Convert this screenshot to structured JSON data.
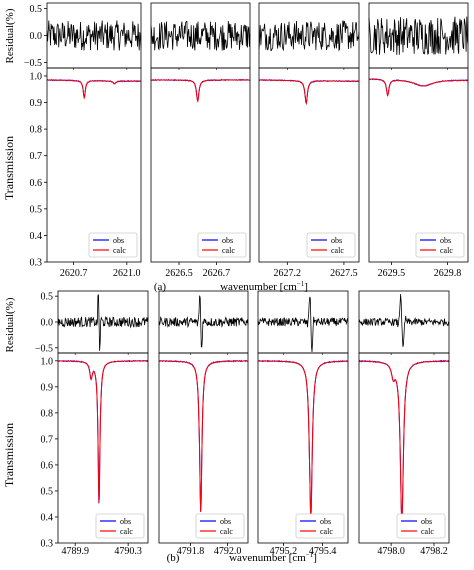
{
  "chart_data": [
    {
      "type": "line",
      "panel_label": "(a)",
      "xlabel": "wavenumber [cm",
      "xlabel_sup": "−1",
      "xlabel_close": "]",
      "residual_ylabel": "Residual(%)",
      "ylabel": "Transmission",
      "residual_ylim": [
        -0.6,
        0.6
      ],
      "residual_yticks": [
        "0.5",
        "0.0",
        "−0.5"
      ],
      "ylim": [
        0.3,
        1.03
      ],
      "yticks": [
        "1.0",
        "0.9",
        "0.8",
        "0.7",
        "0.6",
        "0.5",
        "0.4",
        "0.3"
      ],
      "legend": {
        "placement": "lower right",
        "entries": [
          "obs",
          "calc"
        ]
      },
      "series_colors": {
        "obs": "#0000ff",
        "calc": "#ff0000"
      },
      "residual_noise": [
        0.28,
        0.28,
        0.28,
        0.36
      ],
      "subplots": [
        {
          "xlim": [
            2620.55,
            2621.08
          ],
          "xticks": [
            "2620.7",
            "2621.0"
          ],
          "xtick_values": [
            2620.7,
            2621.0
          ],
          "baseline": [
            0.985,
            0.98
          ],
          "lines": [
            {
              "center": 2620.76,
              "depth": 0.065,
              "width": 0.007
            },
            {
              "center": 2620.93,
              "depth": 0.01,
              "width": 0.01
            }
          ]
        },
        {
          "xlim": [
            2626.35,
            2626.88
          ],
          "xticks": [
            "2626.5",
            "2626.7"
          ],
          "xtick_values": [
            2626.5,
            2626.7
          ],
          "baseline": [
            0.985,
            0.985
          ],
          "lines": [
            {
              "center": 2626.6,
              "depth": 0.08,
              "width": 0.008
            }
          ]
        },
        {
          "xlim": [
            2627.05,
            2627.58
          ],
          "xticks": [
            "2627.2",
            "2627.5"
          ],
          "xtick_values": [
            2627.2,
            2627.5
          ],
          "baseline": [
            0.985,
            0.98
          ],
          "lines": [
            {
              "center": 2627.3,
              "depth": 0.085,
              "width": 0.008
            }
          ]
        },
        {
          "xlim": [
            2629.38,
            2629.91
          ],
          "xticks": [
            "2629.5",
            "2629.8"
          ],
          "xtick_values": [
            2629.5,
            2629.8
          ],
          "baseline": [
            0.99,
            0.985
          ],
          "lines": [
            {
              "center": 2629.48,
              "depth": 0.06,
              "width": 0.008
            },
            {
              "center": 2629.67,
              "depth": 0.025,
              "width": 0.06
            }
          ]
        }
      ]
    },
    {
      "type": "line",
      "panel_label": "(b)",
      "xlabel": "wavenumber [cm",
      "xlabel_sup": "−1",
      "xlabel_close": "]",
      "residual_ylabel": "Residual(%)",
      "ylabel": "Transmission",
      "residual_ylim": [
        -0.6,
        0.6
      ],
      "residual_yticks": [
        "0.5",
        "0.0",
        "−0.5"
      ],
      "ylim": [
        0.3,
        1.03
      ],
      "yticks": [
        "1.0",
        "0.9",
        "0.8",
        "0.7",
        "0.6",
        "0.5",
        "0.4",
        "0.3"
      ],
      "legend": {
        "placement": "lower right",
        "entries": [
          "obs",
          "calc"
        ]
      },
      "series_colors": {
        "obs": "#0000ff",
        "calc": "#ff0000"
      },
      "residual_noise": [
        0.1,
        0.09,
        0.08,
        0.07
      ],
      "subplots": [
        {
          "xlim": [
            4789.77,
            4790.45
          ],
          "xticks": [
            "4789.9",
            "4790.3"
          ],
          "xtick_values": [
            4789.9,
            4790.3
          ],
          "center": 4790.08,
          "min": 0.45,
          "width": 0.04,
          "shoulder": {
            "center": 4790.02,
            "depth": 0.06,
            "width": 0.012
          }
        },
        {
          "xlim": [
            4791.63,
            4792.11
          ],
          "xticks": [
            "4791.8",
            "4792.0"
          ],
          "xtick_values": [
            4791.8,
            4792.0
          ],
          "center": 4791.855,
          "min": 0.42,
          "width": 0.035
        },
        {
          "xlim": [
            4795.07,
            4795.53
          ],
          "xticks": [
            "4795.2",
            "4795.4"
          ],
          "xtick_values": [
            4795.2,
            4795.4
          ],
          "center": 4795.34,
          "min": 0.4,
          "width": 0.04
        },
        {
          "xlim": [
            4797.85,
            4798.27
          ],
          "xticks": [
            "4798.0",
            "4798.2"
          ],
          "xtick_values": [
            4798.0,
            4798.2
          ],
          "center": 4798.05,
          "min": 0.39,
          "width": 0.04,
          "shoulder": {
            "center": 4798.01,
            "depth": 0.05,
            "width": 0.01
          }
        }
      ]
    }
  ]
}
